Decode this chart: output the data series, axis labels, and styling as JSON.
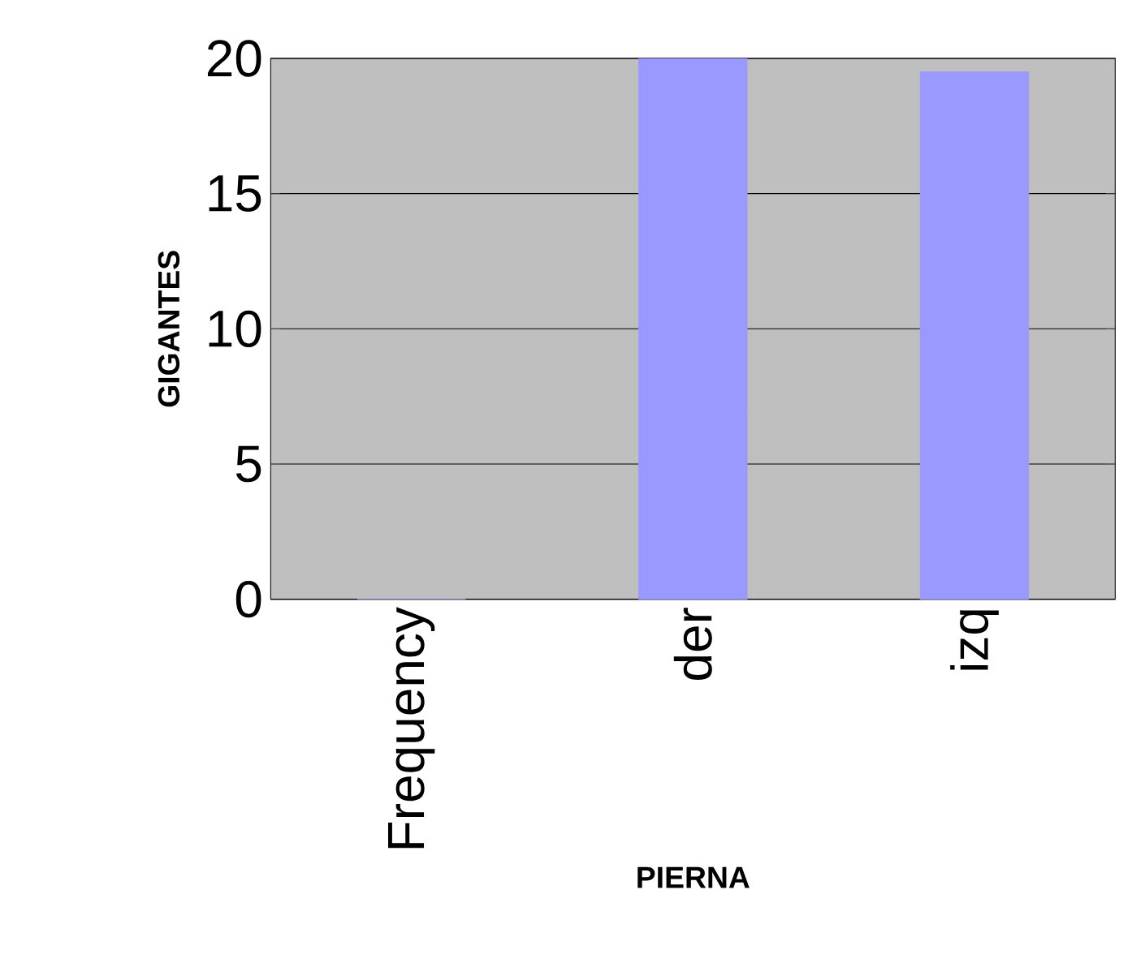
{
  "chart_data": {
    "type": "bar",
    "xlabel": "PIERNA",
    "ylabel": "GIGANTES",
    "categories": [
      "Frequency",
      "der",
      "izq"
    ],
    "values": [
      0,
      20,
      19.5
    ],
    "color": "#9999ff",
    "ylim": [
      0,
      20
    ],
    "yticks": [
      0,
      5,
      10,
      15,
      20
    ],
    "grid": "y"
  }
}
